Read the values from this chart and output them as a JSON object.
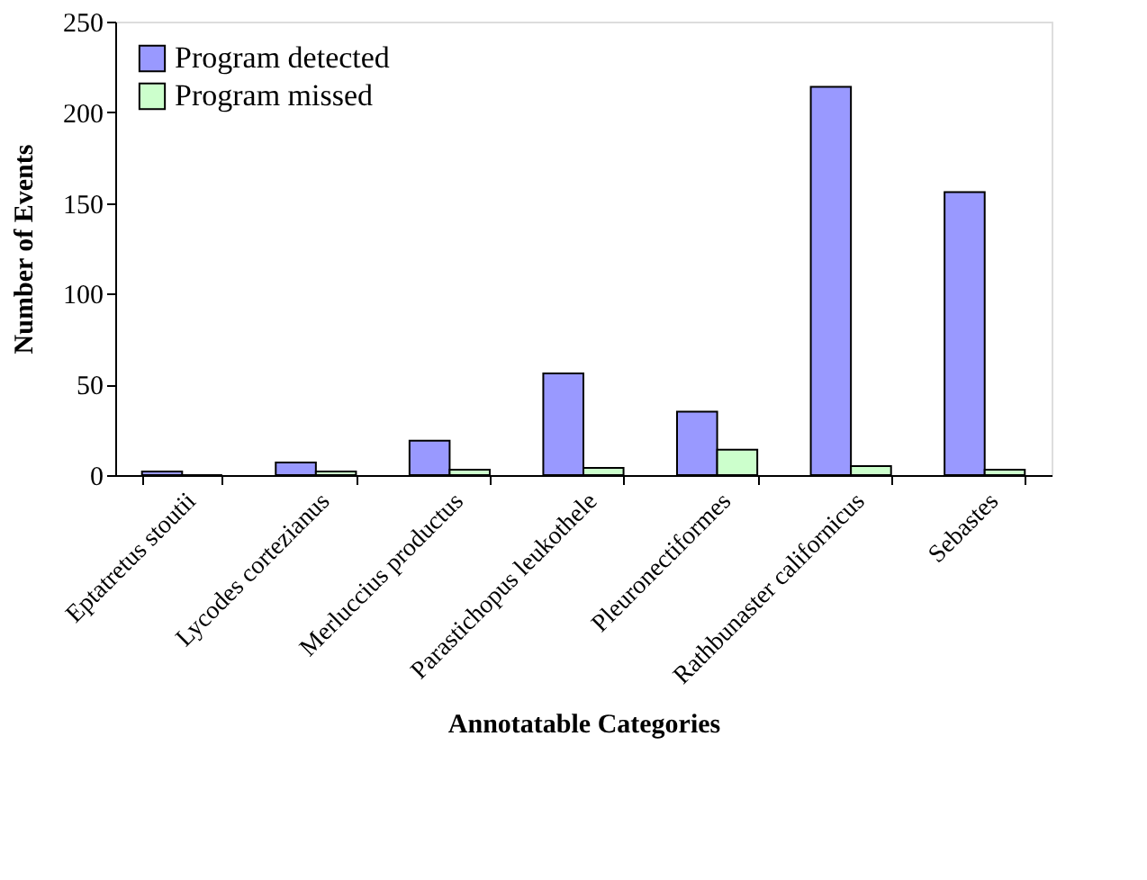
{
  "chart_data": {
    "type": "bar",
    "xlabel": "Annotatable Categories",
    "ylabel": "Number of Events",
    "categories": [
      "Eptatretus stoutii",
      "Lycodes cortezianus",
      "Merluccius productus",
      "Parastichopus leukothele",
      "Pleuronectiformes",
      "Rathbunaster californicus",
      "Sebastes"
    ],
    "series": [
      {
        "name": "Program detected",
        "color": "#9999ff",
        "values": [
          2,
          7,
          19,
          56,
          35,
          214,
          156
        ]
      },
      {
        "name": "Program missed",
        "color": "#ccffcc",
        "values": [
          0,
          2,
          3,
          4,
          14,
          5,
          3
        ]
      }
    ],
    "ylim": [
      0,
      250
    ],
    "yticks": [
      0,
      50,
      100,
      150,
      200,
      250
    ],
    "grid": false,
    "legend": "top left"
  }
}
